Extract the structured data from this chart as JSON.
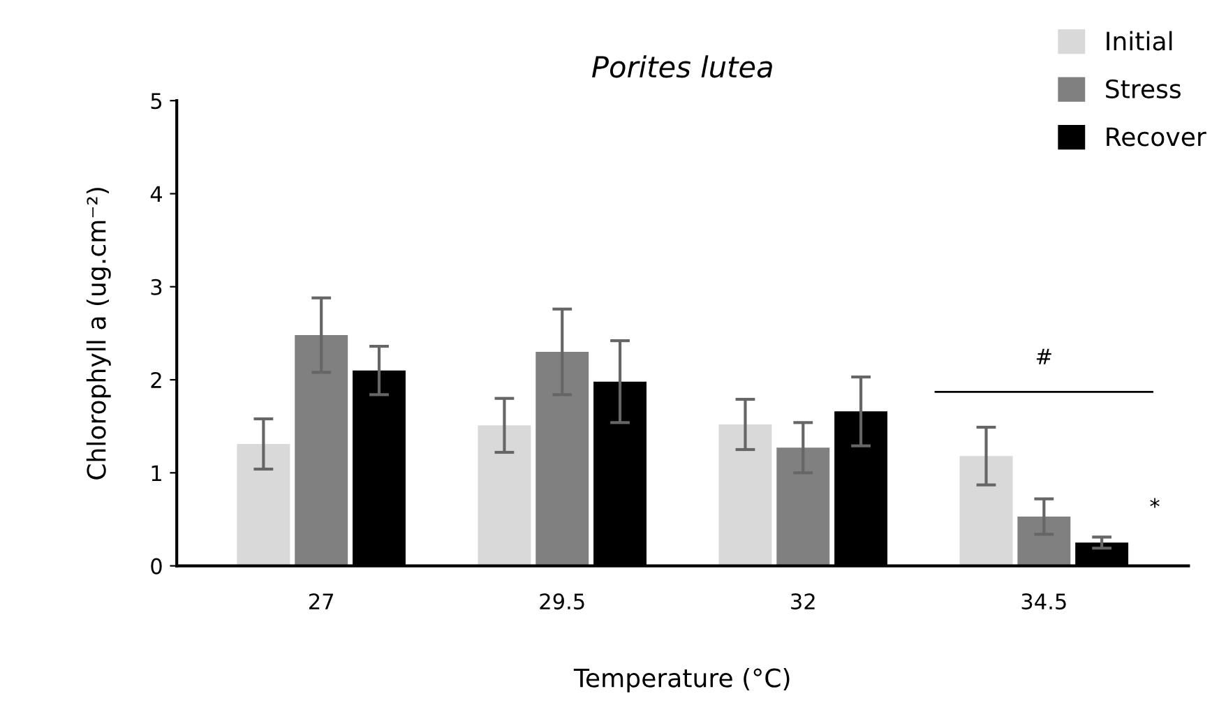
{
  "chart_data": {
    "type": "bar",
    "title": "Porites lutea",
    "xlabel": "Temperature (°C)",
    "ylabel": "Chlorophyll a (ug.cm⁻²)",
    "categories": [
      "27",
      "29.5",
      "32",
      "34.5"
    ],
    "series": [
      {
        "name": "Initial",
        "color": "#d9d9d9",
        "values": [
          1.31,
          1.51,
          1.52,
          1.18
        ],
        "errors": [
          0.27,
          0.29,
          0.27,
          0.31
        ]
      },
      {
        "name": "Stress",
        "color": "#808080",
        "values": [
          2.48,
          2.3,
          1.27,
          0.53
        ],
        "errors": [
          0.4,
          0.46,
          0.27,
          0.19
        ]
      },
      {
        "name": "Recover",
        "color": "#000000",
        "values": [
          2.1,
          1.98,
          1.66,
          0.25
        ],
        "errors": [
          0.26,
          0.44,
          0.37,
          0.06
        ]
      }
    ],
    "ylim": [
      0,
      5
    ],
    "yticks": [
      0,
      1,
      2,
      3,
      4,
      5
    ],
    "grid": false,
    "legend": "top right",
    "annotations": [
      "#",
      "*"
    ]
  }
}
